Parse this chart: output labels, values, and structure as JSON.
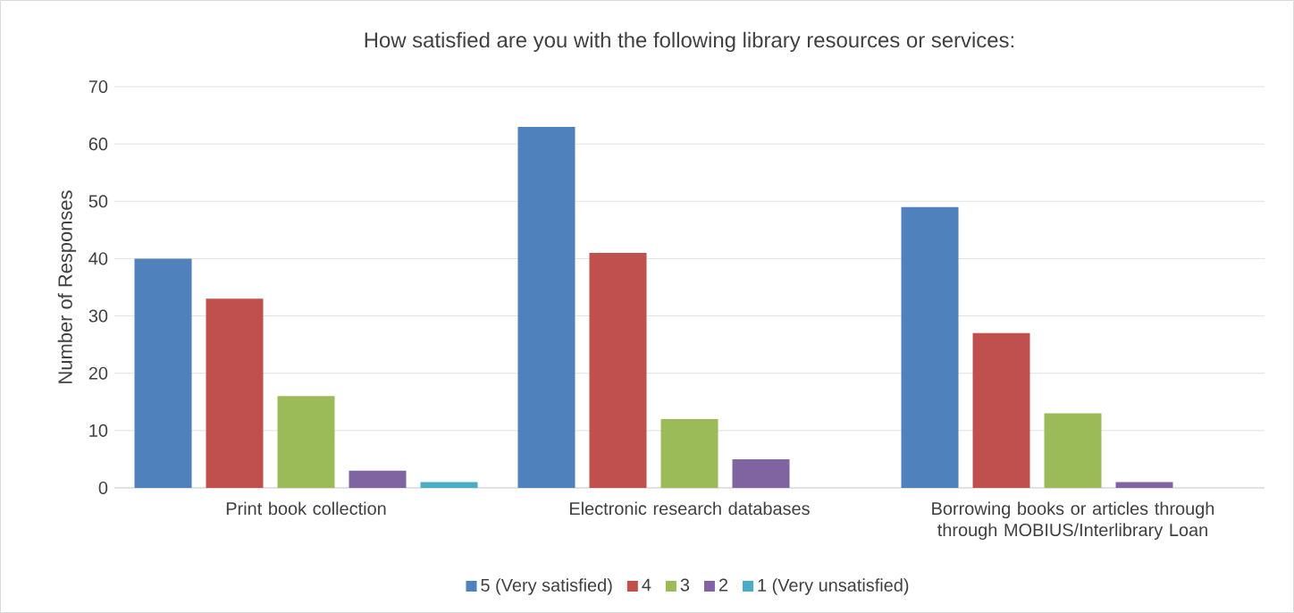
{
  "chart_data": {
    "type": "bar",
    "title": "How satisfied are you with the following library resources or services:",
    "ylabel": "Number of Responses",
    "categories": [
      "Print book collection",
      "Electronic research databases",
      "Borrowing books or articles through through MOBIUS/Interlibrary Loan"
    ],
    "series": [
      {
        "name": "5 (Very satisfied)",
        "color": "#4f81bd",
        "values": [
          40,
          63,
          49
        ]
      },
      {
        "name": "4",
        "color": "#c0504d",
        "values": [
          33,
          41,
          27
        ]
      },
      {
        "name": "3",
        "color": "#9bbb59",
        "values": [
          16,
          12,
          13
        ]
      },
      {
        "name": "2",
        "color": "#8064a2",
        "values": [
          3,
          5,
          1
        ]
      },
      {
        "name": "1 (Very unsatisfied)",
        "color": "#4bacc6",
        "values": [
          1,
          0,
          0
        ]
      }
    ],
    "ylim": [
      0,
      70
    ],
    "yticks": [
      0,
      10,
      20,
      30,
      40,
      50,
      60,
      70
    ],
    "grid": "y",
    "legend": "bottom"
  }
}
